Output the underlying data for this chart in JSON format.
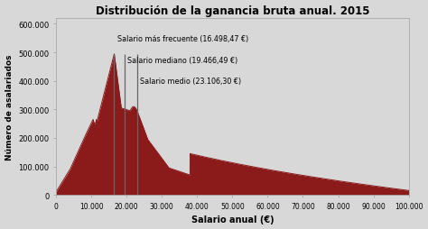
{
  "title": "Distribución de la ganancia bruta anual. 2015",
  "xlabel": "Salario anual (€)",
  "ylabel": "Número de asalariados",
  "curve_color": "#8B1A1A",
  "vline_color": "#666666",
  "background_color": "#d8d8d8",
  "plot_bg_color": "#d8d8d8",
  "xlim": [
    0,
    100000
  ],
  "ylim": [
    0,
    620000
  ],
  "xticks": [
    0,
    10000,
    20000,
    30000,
    40000,
    50000,
    60000,
    70000,
    80000,
    90000,
    100000
  ],
  "yticks": [
    0,
    100000,
    200000,
    300000,
    400000,
    500000,
    600000
  ],
  "salario_frecuente": 16498.47,
  "salario_mediano": 19466.49,
  "salario_medio": 23106.3,
  "label_frecuente": "Salario más frecuente (16.498,47 €)",
  "label_mediano": "Salario mediano (19.466,49 €)",
  "label_medio": "Salario medio (23.106,30 €)"
}
